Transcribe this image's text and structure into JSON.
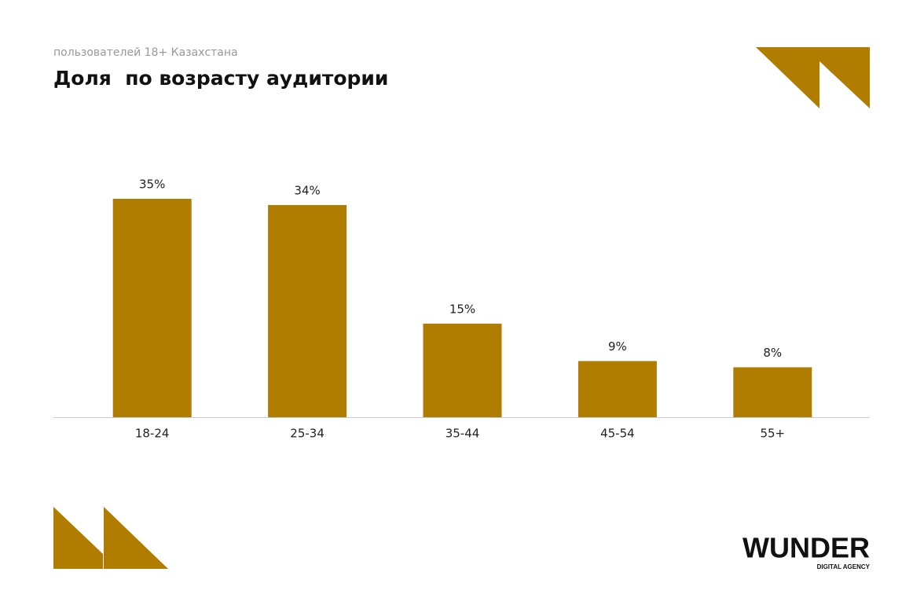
{
  "chart_data": {
    "type": "bar",
    "subtitle": "пользователей 18+ Казахстана",
    "title": "Доля  по возрасту аудитории",
    "categories": [
      "18-24",
      "25-34",
      "35-44",
      "45-54",
      "55+"
    ],
    "values": [
      35,
      34,
      15,
      9,
      8
    ],
    "value_labels": [
      "35%",
      "34%",
      "15%",
      "9%",
      "8%"
    ],
    "color": "#b07d00"
  },
  "logo": {
    "name": "WUNDER",
    "tagline": "DIGITAL AGENCY"
  }
}
